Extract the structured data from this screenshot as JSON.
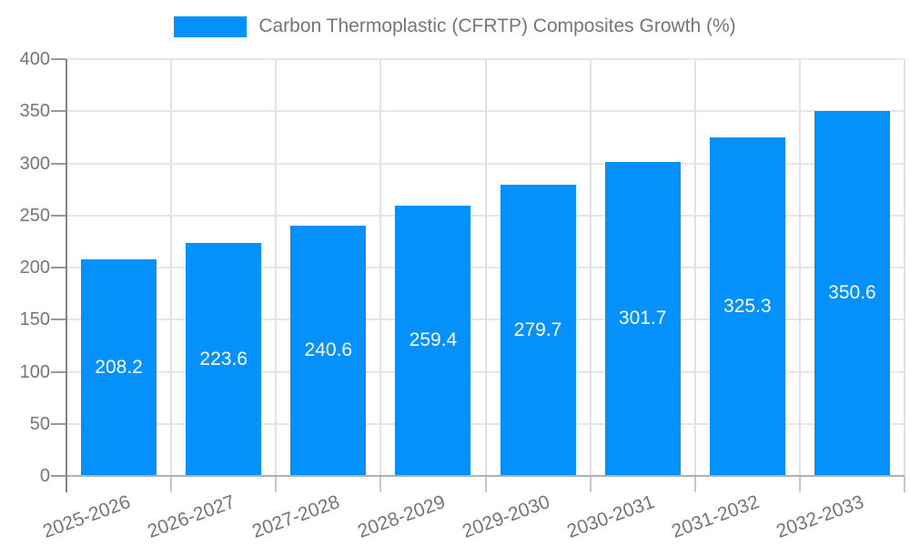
{
  "chart_data": {
    "type": "bar",
    "title": "Carbon Thermoplastic (CFRTP) Composites Growth (%)",
    "legend": {
      "position": "top",
      "entries": [
        "Carbon Thermoplastic (CFRTP) Composites Growth (%)"
      ]
    },
    "categories": [
      "2025-2026",
      "2026-2027",
      "2027-2028",
      "2028-2029",
      "2029-2030",
      "2030-2031",
      "2031-2032",
      "2032-2033"
    ],
    "values": [
      208.2,
      223.6,
      240.6,
      259.4,
      279.7,
      301.7,
      325.3,
      350.6
    ],
    "value_labels": [
      "208.2",
      "223.6",
      "240.6",
      "259.4",
      "279.7",
      "301.7",
      "325.3",
      "350.6"
    ],
    "xlabel": "",
    "ylabel": "",
    "ylim": [
      0,
      400
    ],
    "ytick_step": 50,
    "ytick_labels": [
      "0",
      "50",
      "100",
      "150",
      "200",
      "250",
      "300",
      "350",
      "400"
    ],
    "grid": true,
    "x_label_rotation_deg": -20,
    "colors": {
      "bar": "#0591fb",
      "value_label": "#ffffff",
      "axis_text": "#757575",
      "legend_text": "#757575",
      "gridline": "#e6e6e6",
      "vgridline": "#e2e2e2",
      "y_axis_line": "#858585",
      "x_axis_line": "#b0b0b0",
      "y_tick": "#999999",
      "x_tick": "#c7c7c7",
      "background": "#ffffff"
    }
  }
}
